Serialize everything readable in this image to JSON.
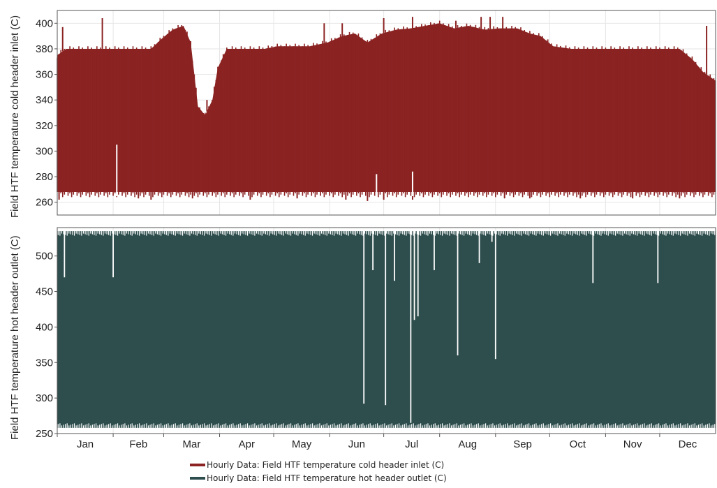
{
  "chart_data": [
    {
      "type": "area",
      "panel": "top",
      "ylabel": "Field HTF temperature cold header inlet (C)",
      "ylim": [
        250,
        410
      ],
      "yticks": [
        260,
        280,
        300,
        320,
        340,
        360,
        380,
        400
      ],
      "x_range_days": [
        0,
        365
      ],
      "color": "#8b2323",
      "series": [
        {
          "name": "Hourly Data: Field HTF temperature cold header inlet (C)",
          "daily_max": [
            [
              0,
              375
            ],
            [
              5,
              380
            ],
            [
              14,
              380
            ],
            [
              22,
              380
            ],
            [
              31,
              380
            ],
            [
              40,
              380
            ],
            [
              52,
              380
            ],
            [
              58,
              388
            ],
            [
              64,
              395
            ],
            [
              70,
              398
            ],
            [
              74,
              385
            ],
            [
              78,
              335
            ],
            [
              82,
              328
            ],
            [
              86,
              340
            ],
            [
              89,
              365
            ],
            [
              94,
              380
            ],
            [
              104,
              380
            ],
            [
              115,
              380
            ],
            [
              122,
              382
            ],
            [
              131,
              382
            ],
            [
              140,
              382
            ],
            [
              150,
              385
            ],
            [
              158,
              390
            ],
            [
              165,
              392
            ],
            [
              172,
              385
            ],
            [
              180,
              392
            ],
            [
              188,
              395
            ],
            [
              196,
              396
            ],
            [
              204,
              398
            ],
            [
              212,
              400
            ],
            [
              220,
              396
            ],
            [
              228,
              398
            ],
            [
              237,
              395
            ],
            [
              245,
              396
            ],
            [
              255,
              396
            ],
            [
              262,
              392
            ],
            [
              268,
              390
            ],
            [
              275,
              382
            ],
            [
              285,
              380
            ],
            [
              295,
              380
            ],
            [
              305,
              380
            ],
            [
              315,
              380
            ],
            [
              325,
              380
            ],
            [
              335,
              380
            ],
            [
              345,
              380
            ],
            [
              352,
              372
            ],
            [
              358,
              362
            ],
            [
              365,
              355
            ]
          ],
          "daily_min_typical": 268,
          "spike_highs": [
            [
              3,
              397
            ],
            [
              25,
              404
            ],
            [
              83,
              340
            ],
            [
              86,
              332
            ],
            [
              148,
              400
            ],
            [
              158,
              400
            ],
            [
              181,
              404
            ],
            [
              197,
              405
            ],
            [
              221,
              402
            ],
            [
              235,
              405
            ],
            [
              240,
              405
            ],
            [
              247,
              405
            ],
            [
              360,
              398
            ]
          ],
          "dips_below_band": [
            [
              1,
              262
            ],
            [
              45,
              263
            ],
            [
              52,
              262
            ],
            [
              75,
              263
            ],
            [
              107,
              262
            ],
            [
              133,
              263
            ],
            [
              160,
              262
            ],
            [
              172,
              261
            ],
            [
              181,
              262
            ],
            [
              197,
              262
            ],
            [
              248,
              263
            ],
            [
              262,
              263
            ],
            [
              290,
              263
            ],
            [
              319,
              263
            ],
            [
              345,
              263
            ]
          ],
          "gaps": [
            [
              177,
              282
            ],
            [
              197,
              284
            ],
            [
              33,
              305
            ]
          ]
        }
      ]
    },
    {
      "type": "area",
      "panel": "bottom",
      "ylabel": "Field HTF temperature hot header outlet (C)",
      "ylim": [
        250,
        540
      ],
      "yticks": [
        250,
        300,
        350,
        400,
        450,
        500
      ],
      "x_range_days": [
        0,
        365
      ],
      "color": "#2e4d4d",
      "series": [
        {
          "name": "Hourly Data: Field HTF temperature hot header outlet (C)",
          "top_level": 535,
          "bottom_level": 258,
          "downward_spikes": [
            [
              4,
              470
            ],
            [
              31,
              470
            ],
            [
              170,
              292
            ],
            [
              175,
              480
            ],
            [
              182,
              290
            ],
            [
              187,
              465
            ],
            [
              196,
              265
            ],
            [
              198,
              410
            ],
            [
              200,
              415
            ],
            [
              209,
              480
            ],
            [
              222,
              360
            ],
            [
              234,
              490
            ],
            [
              241,
              520
            ],
            [
              243,
              355
            ],
            [
              297,
              462
            ],
            [
              333,
              462
            ]
          ],
          "white_notches_top": true,
          "white_notches_bottom": true
        }
      ]
    }
  ],
  "shared_x": {
    "categories": [
      "Jan",
      "Feb",
      "Mar",
      "Apr",
      "May",
      "Jun",
      "Jul",
      "Aug",
      "Sep",
      "Oct",
      "Nov",
      "Dec"
    ]
  },
  "legend": [
    {
      "label": "Hourly Data: Field HTF temperature cold header inlet (C)",
      "color": "#8b2323"
    },
    {
      "label": "Hourly Data: Field HTF temperature hot header outlet (C)",
      "color": "#2e4d4d"
    }
  ]
}
